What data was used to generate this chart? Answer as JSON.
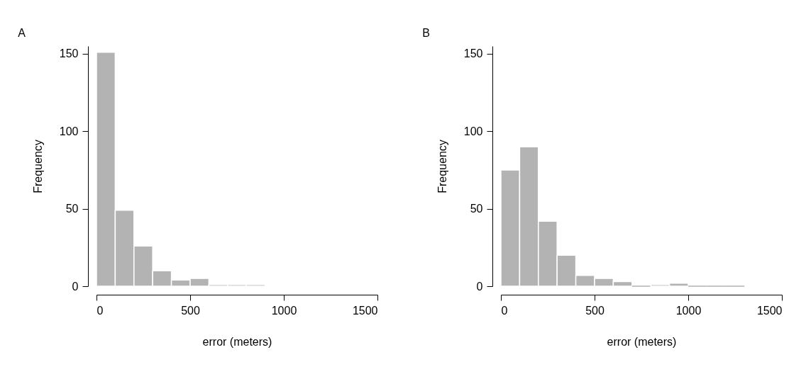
{
  "chart_data": [
    {
      "type": "histogram",
      "title": "A",
      "xlabel": "error (meters)",
      "ylabel": "Frequency",
      "bins": [
        0,
        100,
        200,
        300,
        400,
        500,
        600,
        700,
        800,
        900
      ],
      "values": [
        151,
        49,
        26,
        10,
        4,
        5,
        1,
        1,
        1
      ],
      "color": "#b3b3b3",
      "xlim": [
        0,
        1500
      ],
      "xticks": [
        0,
        500,
        1000,
        1500
      ],
      "ylim": [
        0,
        155
      ],
      "yticks": [
        0,
        50,
        100,
        150
      ],
      "grid": false
    },
    {
      "type": "histogram",
      "title": "B",
      "xlabel": "error (meters)",
      "ylabel": "Frequency",
      "bins": [
        0,
        100,
        200,
        300,
        400,
        500,
        600,
        700,
        800,
        900,
        1000,
        1100,
        1200,
        1300
      ],
      "values": [
        75,
        90,
        42,
        20,
        7,
        5,
        3,
        0,
        1,
        2,
        0,
        0,
        0
      ],
      "color": "#b3b3b3",
      "xlim": [
        0,
        1500
      ],
      "xticks": [
        0,
        500,
        1000,
        1500
      ],
      "ylim": [
        0,
        155
      ],
      "yticks": [
        0,
        50,
        100,
        150
      ],
      "grid": false
    }
  ]
}
